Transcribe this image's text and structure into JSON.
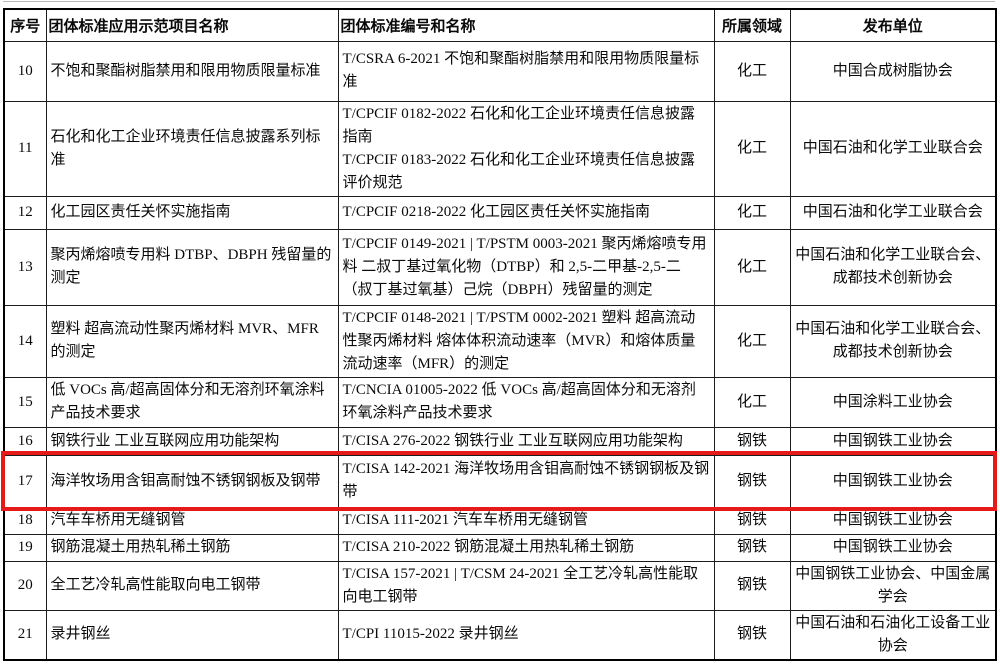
{
  "table": {
    "highlight_color": "#e71a1a",
    "highlighted_row_no": "17",
    "columns": [
      {
        "key": "no",
        "label": "序号"
      },
      {
        "key": "project",
        "label": "团体标准应用示范项目名称"
      },
      {
        "key": "standards",
        "label": "团体标准编号和名称"
      },
      {
        "key": "field",
        "label": "所属领域"
      },
      {
        "key": "publisher",
        "label": "发布单位"
      }
    ],
    "rows": [
      {
        "no": "10",
        "project": "不饱和聚酯树脂禁用和限用物质限量标准",
        "standards": [
          "T/CSRA 6-2021 不饱和聚酯树脂禁用和限用物质限量标准"
        ],
        "field": "化工",
        "publisher": "中国合成树脂协会",
        "highlighted": false
      },
      {
        "no": "11",
        "project": "石化和化工企业环境责任信息披露系列标准",
        "standards": [
          "T/CPCIF 0182-2022 石化和化工企业环境责任信息披露指南",
          "T/CPCIF 0183-2022 石化和化工企业环境责任信息披露评价规范"
        ],
        "field": "化工",
        "publisher": "中国石油和化学工业联合会",
        "highlighted": false
      },
      {
        "no": "12",
        "project": "化工园区责任关怀实施指南",
        "standards": [
          "T/CPCIF 0218-2022 化工园区责任关怀实施指南"
        ],
        "field": "化工",
        "publisher": "中国石油和化学工业联合会",
        "highlighted": false
      },
      {
        "no": "13",
        "project": "聚丙烯熔喷专用料 DTBP、DBPH 残留量的测定",
        "standards": [
          "T/CPCIF 0149-2021 | T/PSTM 0003-2021 聚丙烯熔喷专用料 二叔丁基过氧化物（DTBP）和 2,5-二甲基-2,5-二（叔丁基过氧基）己烷（DBPH）残留量的测定"
        ],
        "field": "化工",
        "publisher": "中国石油和化学工业联合会、成都技术创新协会",
        "highlighted": false
      },
      {
        "no": "14",
        "project": "塑料 超高流动性聚丙烯材料 MVR、MFR 的测定",
        "standards": [
          "T/CPCIF 0148-2021 | T/PSTM 0002-2021 塑料 超高流动性聚丙烯材料 熔体体积流动速率（MVR）和熔体质量流动速率（MFR）的测定"
        ],
        "field": "化工",
        "publisher": "中国石油和化学工业联合会、成都技术创新协会",
        "highlighted": false
      },
      {
        "no": "15",
        "project": "低 VOCs 高/超高固体分和无溶剂环氧涂料产品技术要求",
        "standards": [
          "T/CNCIA 01005-2022 低 VOCs 高/超高固体分和无溶剂环氧涂料产品技术要求"
        ],
        "field": "化工",
        "publisher": "中国涂料工业协会",
        "highlighted": false
      },
      {
        "no": "16",
        "project": "钢铁行业 工业互联网应用功能架构",
        "standards": [
          "T/CISA 276-2022 钢铁行业 工业互联网应用功能架构"
        ],
        "field": "钢铁",
        "publisher": "中国钢铁工业协会",
        "highlighted": false
      },
      {
        "no": "17",
        "project": "海洋牧场用含钼高耐蚀不锈钢钢板及钢带",
        "standards": [
          "T/CISA 142-2021 海洋牧场用含钼高耐蚀不锈钢钢板及钢带"
        ],
        "field": "钢铁",
        "publisher": "中国钢铁工业协会",
        "highlighted": true
      },
      {
        "no": "18",
        "project": "汽车车桥用无缝钢管",
        "standards": [
          "T/CISA 111-2021 汽车车桥用无缝钢管"
        ],
        "field": "钢铁",
        "publisher": "中国钢铁工业协会",
        "highlighted": false
      },
      {
        "no": "19",
        "project": "钢筋混凝土用热轧稀土钢筋",
        "standards": [
          "T/CISA 210-2022 钢筋混凝土用热轧稀土钢筋"
        ],
        "field": "钢铁",
        "publisher": "中国钢铁工业协会",
        "highlighted": false
      },
      {
        "no": "20",
        "project": "全工艺冷轧高性能取向电工钢带",
        "standards": [
          "T/CISA 157-2021 | T/CSM 24-2021 全工艺冷轧高性能取向电工钢带"
        ],
        "field": "钢铁",
        "publisher": "中国钢铁工业协会、中国金属学会",
        "highlighted": false
      },
      {
        "no": "21",
        "project": "录井钢丝",
        "standards": [
          "T/CPI 11015-2022 录井钢丝"
        ],
        "field": "钢铁",
        "publisher": "中国石油和石油化工设备工业协会",
        "highlighted": false
      }
    ]
  }
}
